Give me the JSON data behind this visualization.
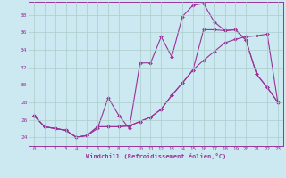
{
  "xlabel": "Windchill (Refroidissement éolien,°C)",
  "bg_color": "#cce8f0",
  "grid_color": "#aacccc",
  "line_color": "#993399",
  "xlim": [
    -0.5,
    23.5
  ],
  "ylim": [
    23.0,
    39.5
  ],
  "yticks": [
    24,
    26,
    28,
    30,
    32,
    34,
    36,
    38
  ],
  "xticks": [
    0,
    1,
    2,
    3,
    4,
    5,
    6,
    7,
    8,
    9,
    10,
    11,
    12,
    13,
    14,
    15,
    16,
    17,
    18,
    19,
    20,
    21,
    22,
    23
  ],
  "line1_x": [
    0,
    1,
    2,
    3,
    4,
    5,
    6,
    7,
    8,
    9,
    10,
    11,
    12,
    13,
    14,
    15,
    16,
    17,
    18,
    19,
    20,
    21,
    22,
    23
  ],
  "line1_y": [
    26.5,
    25.2,
    25.0,
    24.8,
    24.0,
    24.2,
    25.0,
    28.5,
    26.5,
    25.0,
    32.5,
    32.5,
    35.5,
    33.2,
    37.8,
    39.1,
    39.3,
    37.2,
    36.2,
    36.3,
    35.1,
    31.2,
    29.7,
    28.0
  ],
  "line2_x": [
    0,
    1,
    2,
    3,
    4,
    5,
    6,
    7,
    8,
    9,
    10,
    11,
    12,
    13,
    14,
    15,
    16,
    17,
    18,
    19,
    20,
    21,
    22,
    23
  ],
  "line2_y": [
    26.5,
    25.2,
    25.0,
    24.8,
    24.0,
    24.2,
    25.2,
    25.2,
    25.2,
    25.3,
    25.8,
    26.3,
    27.2,
    28.8,
    30.2,
    31.7,
    32.8,
    33.8,
    34.8,
    35.2,
    35.5,
    35.6,
    35.8,
    28.0
  ],
  "line3_x": [
    0,
    1,
    2,
    3,
    4,
    5,
    6,
    7,
    8,
    9,
    10,
    11,
    12,
    13,
    14,
    15,
    16,
    17,
    18,
    19,
    20,
    21,
    22,
    23
  ],
  "line3_y": [
    26.5,
    25.2,
    25.0,
    24.8,
    24.0,
    24.2,
    25.2,
    25.2,
    25.2,
    25.3,
    25.8,
    26.3,
    27.2,
    28.8,
    30.2,
    31.7,
    36.3,
    36.3,
    36.2,
    36.3,
    35.1,
    31.2,
    29.7,
    28.0
  ]
}
